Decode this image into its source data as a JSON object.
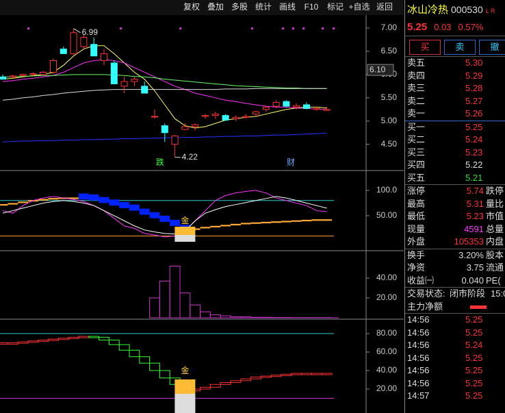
{
  "toolbar": [
    "复权",
    "叠加",
    "多股",
    "统计",
    "画线",
    "F10",
    "标记",
    "+自选",
    "返回"
  ],
  "chart": {
    "price_panel": {
      "ylim": [
        3.95,
        7.28
      ],
      "yticks": [
        {
          "value": 7,
          "label": "7.00"
        },
        {
          "value": 6.5,
          "label": "6.50"
        },
        {
          "value": 6,
          "label": "6.00"
        },
        {
          "value": 5.5,
          "label": "5.50"
        },
        {
          "value": 5,
          "label": "5.00"
        },
        {
          "value": 4.5,
          "label": "4.50"
        }
      ],
      "current_label": {
        "value": 6.1,
        "label": "6.10"
      },
      "candles": [
        [
          5.95,
          6.0,
          5.9,
          5.9
        ],
        [
          5.95,
          6.0,
          5.93,
          5.97
        ],
        [
          5.98,
          6.02,
          5.95,
          6.0
        ],
        [
          6.0,
          6.05,
          5.97,
          6.02
        ],
        [
          6.0,
          6.08,
          5.98,
          6.05
        ],
        [
          6.05,
          6.35,
          6.0,
          6.3
        ],
        [
          6.55,
          6.6,
          6.45,
          6.45
        ],
        [
          6.45,
          6.99,
          6.4,
          6.9
        ],
        [
          6.6,
          6.85,
          6.55,
          6.8
        ],
        [
          6.65,
          6.8,
          6.4,
          6.4
        ],
        [
          6.3,
          6.55,
          6.2,
          6.45
        ],
        [
          6.25,
          6.3,
          5.8,
          5.8
        ],
        [
          5.75,
          5.95,
          5.6,
          5.85
        ],
        [
          5.85,
          5.95,
          5.75,
          5.9
        ],
        [
          5.75,
          5.85,
          5.6,
          5.6
        ],
        [
          5.1,
          5.25,
          5.05,
          5.1
        ],
        [
          4.9,
          4.95,
          4.55,
          4.75
        ],
        [
          4.5,
          4.7,
          4.22,
          4.68
        ],
        [
          4.82,
          4.95,
          4.8,
          4.88
        ],
        [
          4.88,
          4.95,
          4.8,
          4.92
        ],
        [
          5.1,
          5.15,
          5.05,
          5.12
        ],
        [
          5.12,
          5.2,
          5.05,
          5.15
        ],
        [
          5.12,
          5.15,
          5.0,
          5.02
        ],
        [
          5.05,
          5.12,
          5.0,
          5.08
        ],
        [
          5.08,
          5.15,
          5.05,
          5.1
        ],
        [
          5.15,
          5.22,
          5.1,
          5.2
        ],
        [
          5.25,
          5.32,
          5.2,
          5.3
        ],
        [
          5.32,
          5.45,
          5.28,
          5.4
        ],
        [
          5.42,
          5.45,
          5.3,
          5.32
        ],
        [
          5.3,
          5.38,
          5.25,
          5.33
        ],
        [
          5.35,
          5.4,
          5.25,
          5.27
        ],
        [
          5.25,
          5.3,
          5.22,
          5.27
        ],
        [
          5.23,
          5.31,
          5.23,
          5.25
        ]
      ],
      "lines": [
        {
          "color": "#ffff66",
          "values": [
            5.9,
            5.92,
            5.95,
            5.98,
            6.0,
            6.05,
            6.2,
            6.4,
            6.55,
            6.62,
            6.62,
            6.45,
            6.25,
            6.05,
            5.9,
            5.65,
            5.35,
            5.05,
            4.9,
            4.85,
            4.88,
            4.95,
            5.02,
            5.05,
            5.08,
            5.1,
            5.15,
            5.2,
            5.25,
            5.28,
            5.3,
            5.3,
            5.28
          ]
        },
        {
          "color": "#ff33ff",
          "values": [
            5.85,
            5.87,
            5.9,
            5.92,
            5.95,
            5.98,
            6.05,
            6.15,
            6.25,
            6.3,
            6.32,
            6.3,
            6.25,
            6.15,
            6.05,
            5.95,
            5.85,
            5.75,
            5.68,
            5.6,
            5.55,
            5.5,
            5.45,
            5.42,
            5.38,
            5.35,
            5.32,
            5.3,
            5.3,
            5.28,
            5.27,
            5.26,
            5.25
          ]
        },
        {
          "color": "#66ff66",
          "values": [
            5.95,
            5.95,
            5.96,
            5.97,
            5.98,
            5.98,
            5.99,
            6.0,
            6.0,
            6.0,
            6.0,
            5.99,
            5.98,
            5.96,
            5.95,
            5.93,
            5.9,
            5.88,
            5.86,
            5.84,
            5.82,
            5.8,
            5.78,
            5.76,
            5.75,
            5.74,
            5.73,
            5.72,
            5.71,
            5.71,
            5.7,
            5.7,
            5.7
          ]
        },
        {
          "color": "#dddddd",
          "values": [
            5.45,
            5.47,
            5.5,
            5.52,
            5.55,
            5.57,
            5.6,
            5.62,
            5.64,
            5.66,
            5.67,
            5.68,
            5.68,
            5.68,
            5.68,
            5.68,
            5.68,
            5.68,
            5.68,
            5.68,
            5.68,
            5.68,
            5.69,
            5.69,
            5.69,
            5.7,
            5.7,
            5.7,
            5.7,
            5.7,
            5.7,
            5.7,
            5.7
          ]
        },
        {
          "color": "#2233ff",
          "values": [
            4.55,
            4.56,
            4.57,
            4.57,
            4.58,
            4.58,
            4.59,
            4.59,
            4.6,
            4.6,
            4.61,
            4.61,
            4.62,
            4.62,
            4.63,
            4.63,
            4.64,
            4.64,
            4.65,
            4.65,
            4.66,
            4.66,
            4.67,
            4.67,
            4.68,
            4.68,
            4.69,
            4.7,
            4.7,
            4.71,
            4.72,
            4.73,
            4.74
          ]
        }
      ],
      "high_label": "6.99",
      "low_label": "4.22",
      "marker_down": "跌",
      "marker_fin": "财"
    },
    "panel2": {
      "ylim": [
        -17.6,
        137.8
      ],
      "yticks": [
        {
          "value": 100,
          "label": "100.0"
        },
        {
          "value": 50,
          "label": "50.00"
        }
      ],
      "ref_lines": [
        {
          "value": 80,
          "color": "#33cccc"
        },
        {
          "value": 10,
          "color": "#ffaa33"
        }
      ],
      "band": [
        70,
        72,
        75,
        78,
        80,
        82,
        83,
        83,
        82,
        80,
        75,
        70,
        65,
        60,
        52,
        45,
        38,
        30,
        20,
        22,
        25,
        27,
        29,
        31,
        33,
        34,
        35,
        36,
        37,
        38,
        39,
        40,
        40
      ],
      "lines": [
        {
          "color": "#ff33ff",
          "values": [
            60,
            55,
            70,
            80,
            85,
            88,
            85,
            82,
            78,
            70,
            60,
            45,
            30,
            25,
            15,
            12,
            8,
            10,
            20,
            40,
            60,
            80,
            90,
            95,
            98,
            100,
            95,
            85,
            80,
            75,
            70,
            60,
            58
          ]
        },
        {
          "color": "#ffffff",
          "values": [
            55,
            60,
            65,
            70,
            75,
            78,
            80,
            78,
            75,
            70,
            60,
            50,
            40,
            30,
            22,
            18,
            15,
            14,
            20,
            40,
            55,
            62,
            68,
            72,
            76,
            80,
            84,
            88,
            85,
            80,
            75,
            70,
            65
          ]
        }
      ],
      "signal": "金"
    },
    "panel3": {
      "ylim": [
        -0.7,
        66.9
      ],
      "yticks": [
        {
          "value": 40,
          "label": "40.00"
        },
        {
          "value": 20,
          "label": "20.00"
        }
      ],
      "values": [
        null,
        null,
        null,
        null,
        null,
        null,
        null,
        null,
        null,
        null,
        null,
        null,
        null,
        null,
        null,
        20,
        37,
        52,
        25,
        13,
        6,
        3,
        2,
        1,
        1,
        0.5,
        0.5,
        0.3,
        0.3,
        0.2,
        0.2,
        0.2,
        0.2
      ]
    },
    "panel4": {
      "ylim": [
        -5.9,
        94.8
      ],
      "yticks": [
        {
          "value": 80,
          "label": "80.00"
        },
        {
          "value": 60,
          "label": "60.00"
        },
        {
          "value": 40,
          "label": "40.00"
        },
        {
          "value": 20,
          "label": "20.00"
        }
      ],
      "ref_lines": [
        {
          "value": 80,
          "color": "#33cccc"
        },
        {
          "value": 10,
          "color": "#cc33cc"
        }
      ],
      "values": [
        70,
        70,
        71,
        72,
        73,
        74,
        75,
        76,
        77,
        76,
        73,
        68,
        62,
        55,
        48,
        40,
        32,
        25,
        18,
        20,
        22,
        25,
        27,
        29,
        31,
        33,
        34,
        35,
        36,
        37,
        37,
        37,
        37
      ],
      "signal": "金"
    }
  },
  "quote": {
    "name": "冰山冷热",
    "code": "000530",
    "flags": "L R",
    "price": "5.25",
    "change": "0.03",
    "pct": "0.57%",
    "buttons": [
      "买",
      "卖",
      "撤"
    ]
  },
  "asks": [
    [
      "卖五",
      "5.30"
    ],
    [
      "卖四",
      "5.29"
    ],
    [
      "卖三",
      "5.28"
    ],
    [
      "卖二",
      "5.27"
    ],
    [
      "卖一",
      "5.26"
    ]
  ],
  "bids": [
    [
      "买一",
      "5.25",
      "#ff3333"
    ],
    [
      "买二",
      "5.24",
      "#ff3333"
    ],
    [
      "买三",
      "5.23",
      "#ff3333"
    ],
    [
      "买四",
      "5.22",
      "#dddddd"
    ],
    [
      "买五",
      "5.21",
      "#33dd33"
    ]
  ],
  "stats": [
    [
      "涨停",
      "5.74",
      "跌停",
      "#ff3333"
    ],
    [
      "最高",
      "5.31",
      "量比",
      "#ff3333"
    ],
    [
      "最低",
      "5.23",
      "市值",
      "#ff3333"
    ],
    [
      "现量",
      "4591",
      "总量",
      "#ff33ff"
    ],
    [
      "外盘",
      "105353",
      "内盘",
      "#ff3333"
    ]
  ],
  "stats2": [
    [
      "换手",
      "3.20%",
      "股本"
    ],
    [
      "净资",
      "3.75",
      "流通"
    ],
    [
      "收益㈠",
      "0.040",
      "PE("
    ]
  ],
  "status": {
    "label": "交易状态:",
    "value": "闭市阶段",
    "time": "15:0"
  },
  "flow": "主力净额",
  "trades": [
    [
      "14:56",
      "5.25"
    ],
    [
      "14:56",
      "5.25"
    ],
    [
      "14:56",
      "5.24"
    ],
    [
      "14:56",
      "5.25"
    ],
    [
      "14:56",
      "5.25"
    ],
    [
      "14:56",
      "5.25"
    ],
    [
      "14:57",
      "5.25"
    ]
  ]
}
